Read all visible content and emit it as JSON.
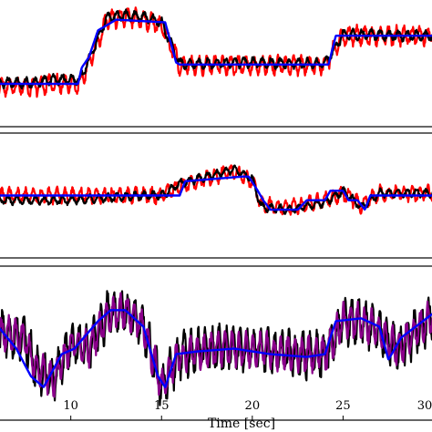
{
  "chart_data": [
    {
      "type": "line",
      "xlabel": "",
      "ylabel": "",
      "xlim": [
        6,
        30
      ],
      "ylim": [
        -1.0,
        1.2
      ],
      "series": [
        {
          "color": "#ff0000",
          "noise": 0.24,
          "freq": 2.3,
          "seed": 11,
          "x": [
            6,
            8,
            9,
            10.5,
            11,
            12,
            13,
            14,
            15,
            16,
            18,
            20,
            22,
            24,
            25,
            27,
            28,
            30
          ],
          "y": [
            -0.35,
            -0.35,
            -0.3,
            -0.3,
            0.1,
            0.9,
            0.95,
            0.9,
            0.8,
            0.05,
            0.05,
            0.05,
            0.05,
            0.05,
            0.6,
            0.6,
            0.6,
            0.6
          ]
        },
        {
          "color": "#000000",
          "noise": 0.13,
          "freq": 2.0,
          "seed": 23,
          "x": [
            6,
            8,
            9,
            10.5,
            11,
            12,
            13,
            14,
            15,
            16,
            18,
            20,
            22,
            24,
            25,
            27,
            28,
            30
          ],
          "y": [
            -0.28,
            -0.28,
            -0.22,
            -0.22,
            0.15,
            0.95,
            0.98,
            0.95,
            0.85,
            0.08,
            0.08,
            0.1,
            0.08,
            0.08,
            0.62,
            0.62,
            0.6,
            0.6
          ]
        },
        {
          "color": "#0000ff",
          "noise": 0.0,
          "freq": 0,
          "seed": 0,
          "x": [
            6,
            10.4,
            10.6,
            11,
            11.5,
            12.5,
            15.2,
            15.8,
            16,
            24.2,
            24.6,
            30
          ],
          "y": [
            -0.3,
            -0.3,
            0.0,
            0.2,
            0.7,
            0.9,
            0.85,
            0.1,
            0.06,
            0.06,
            0.6,
            0.6
          ]
        }
      ]
    },
    {
      "type": "line",
      "xlabel": "",
      "ylabel": "",
      "xlim": [
        6,
        30
      ],
      "ylim": [
        -1.2,
        1.2
      ],
      "series": [
        {
          "color": "#ff0000",
          "noise": 0.22,
          "freq": 2.3,
          "seed": 37,
          "x": [
            6,
            10,
            12,
            14,
            15,
            16,
            18,
            19,
            20,
            20.5,
            22,
            24,
            25,
            26,
            27,
            28,
            30
          ],
          "y": [
            0,
            0,
            0,
            0,
            0,
            0.2,
            0.4,
            0.5,
            0.3,
            -0.2,
            -0.25,
            -0.1,
            0.05,
            -0.2,
            0.05,
            0.05,
            0.05
          ]
        },
        {
          "color": "#000000",
          "noise": 0.12,
          "freq": 2.0,
          "seed": 41,
          "x": [
            6,
            10,
            12,
            14,
            15,
            16,
            18,
            19,
            20,
            20.5,
            22,
            24,
            25,
            26,
            27,
            28,
            30
          ],
          "y": [
            -0.1,
            -0.1,
            -0.05,
            0,
            0,
            0.25,
            0.45,
            0.55,
            0.35,
            -0.25,
            -0.3,
            -0.15,
            0.1,
            -0.25,
            0.05,
            0.05,
            0.05
          ]
        },
        {
          "color": "#0000ff",
          "noise": 0.0,
          "freq": 0,
          "seed": 0,
          "x": [
            6,
            16,
            16.3,
            19.5,
            19.8,
            20.3,
            20.6,
            21,
            22.5,
            23,
            24,
            24.3,
            25,
            25.3,
            25.8,
            26.2,
            26.5,
            30
          ],
          "y": [
            0,
            0,
            0.3,
            0.4,
            0.4,
            0.1,
            -0.1,
            -0.3,
            -0.3,
            -0.1,
            -0.1,
            0.1,
            0.1,
            -0.1,
            -0.1,
            -0.3,
            0,
            0
          ]
        }
      ]
    },
    {
      "type": "line",
      "xlabel": "Time [sec]",
      "ylabel": "",
      "xlim": [
        6,
        30
      ],
      "ylim": [
        -1.3,
        1.3
      ],
      "x_ticks": [
        10,
        15,
        20,
        25,
        30
      ],
      "x_tick_labels": [
        "10",
        "15",
        "20",
        "25",
        "30"
      ],
      "series": [
        {
          "color": "#000000",
          "noise": 0.55,
          "freq": 2.6,
          "seed": 53,
          "x": [
            6,
            7.5,
            8,
            9,
            10,
            11,
            12,
            13,
            14,
            15,
            16,
            18,
            20,
            22,
            24,
            25,
            26,
            27,
            28,
            30
          ],
          "y": [
            0.2,
            0.1,
            -0.4,
            -0.7,
            0.0,
            -0.1,
            0.5,
            0.6,
            0.3,
            -0.8,
            -0.2,
            -0.1,
            -0.1,
            -0.2,
            -0.2,
            0.4,
            0.4,
            0.2,
            -0.1,
            0.5
          ]
        },
        {
          "color": "#8b008b",
          "noise": 0.42,
          "freq": 2.6,
          "seed": 61,
          "x": [
            6,
            7.5,
            8,
            9,
            10,
            11,
            12,
            13,
            14,
            15,
            16,
            18,
            20,
            22,
            24,
            25,
            26,
            27,
            28,
            30
          ],
          "y": [
            0.2,
            0.1,
            -0.4,
            -0.7,
            0.0,
            -0.1,
            0.5,
            0.6,
            0.3,
            -0.8,
            -0.2,
            -0.1,
            -0.1,
            -0.2,
            -0.2,
            0.4,
            0.4,
            0.2,
            -0.1,
            0.5
          ]
        },
        {
          "color": "#0000ff",
          "noise": 0.0,
          "freq": 0,
          "seed": 0,
          "x": [
            6,
            7,
            7.8,
            8.5,
            9.5,
            10.2,
            11.5,
            12.2,
            13,
            14,
            14.8,
            15.2,
            15.8,
            17,
            19,
            21,
            23,
            24,
            24.6,
            26,
            27,
            27.5,
            28.2,
            30
          ],
          "y": [
            0.3,
            -0.1,
            -0.6,
            -0.8,
            -0.2,
            -0.1,
            0.4,
            0.6,
            0.6,
            0.3,
            -0.6,
            -0.8,
            -0.2,
            -0.15,
            -0.1,
            -0.2,
            -0.25,
            -0.2,
            0.4,
            0.45,
            0.3,
            -0.3,
            0.1,
            0.55
          ]
        }
      ]
    }
  ]
}
